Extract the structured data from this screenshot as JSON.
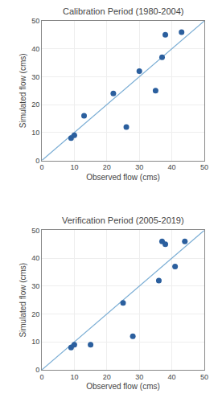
{
  "chart_data": [
    {
      "type": "scatter",
      "title": "Calibration Period (1980-2004)",
      "xlabel": "Observed flow (cms)",
      "ylabel": "Simulated flow (cms)",
      "series": [
        {
          "type": "line",
          "color": "#7AADD4",
          "x": [
            0,
            50
          ],
          "values": [
            0,
            50
          ]
        },
        {
          "type": "scatter",
          "color": "#2B5F9E",
          "marker": "circle",
          "x": [
            9,
            10,
            13,
            22,
            26,
            30,
            35,
            37,
            38,
            43
          ],
          "values": [
            8,
            9,
            16,
            24,
            12,
            32,
            25,
            37,
            45,
            46
          ]
        }
      ],
      "xlim": [
        0,
        50
      ],
      "ylim": [
        0,
        50
      ],
      "xticks": [
        0,
        10,
        20,
        30,
        40,
        50
      ],
      "yticks": [
        0,
        10,
        20,
        30,
        40,
        50
      ],
      "grid": true
    },
    {
      "type": "scatter",
      "title": "Verification Period (2005-2019)",
      "xlabel": "Observed flow (cms)",
      "ylabel": "Simulated flow (cms)",
      "series": [
        {
          "type": "line",
          "color": "#7AADD4",
          "x": [
            0,
            50
          ],
          "values": [
            0,
            50
          ]
        },
        {
          "type": "scatter",
          "color": "#2B5F9E",
          "marker": "circle",
          "x": [
            9,
            10,
            15,
            25,
            28,
            36,
            37,
            38,
            41,
            44
          ],
          "values": [
            8,
            9,
            9,
            24,
            12,
            32,
            46,
            45,
            37,
            46
          ]
        }
      ],
      "xlim": [
        0,
        50
      ],
      "ylim": [
        0,
        50
      ],
      "xticks": [
        0,
        10,
        20,
        30,
        40,
        50
      ],
      "yticks": [
        0,
        10,
        20,
        30,
        40,
        50
      ],
      "grid": true
    }
  ]
}
